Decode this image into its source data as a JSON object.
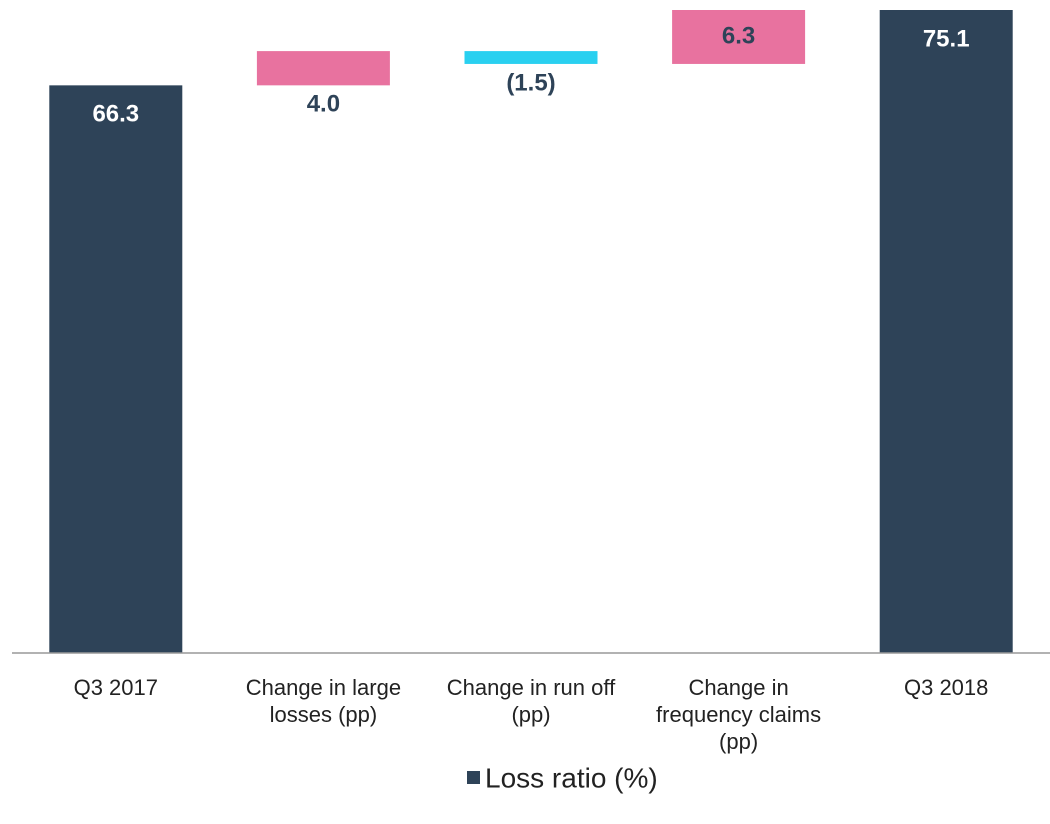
{
  "chart_data": {
    "type": "waterfall",
    "categories": [
      "Q3 2017",
      "Change in large losses (pp)",
      "Change in run off (pp)",
      "Change in frequency claims (pp)",
      "Q3 2018"
    ],
    "values": [
      66.3,
      4.0,
      -1.5,
      6.3,
      75.1
    ],
    "value_labels": [
      "66.3",
      "4.0",
      "(1.5)",
      "6.3",
      "75.1"
    ],
    "measure": [
      "absolute",
      "relative",
      "relative",
      "relative",
      "total"
    ],
    "colors": [
      "#2e4358",
      "#e8729f",
      "#29d0f0",
      "#e8729f",
      "#2e4358"
    ],
    "legend": {
      "label": "Loss ratio (%)",
      "color": "#2e4358",
      "position": "bottom"
    }
  }
}
